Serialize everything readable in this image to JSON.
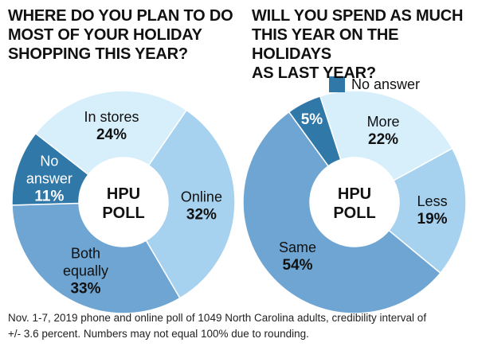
{
  "chart_data": [
    {
      "type": "pie",
      "variant": "donut",
      "title": "WHERE DO YOU PLAN TO DO\nMOST OF YOUR HOLIDAY\nSHOPPING THIS YEAR?",
      "center_label": "HPU\nPOLL",
      "slices": [
        {
          "label": "In stores",
          "value": 24,
          "display": "24%",
          "color": "#d7eefb"
        },
        {
          "label": "Online",
          "value": 32,
          "display": "32%",
          "color": "#a6d1ef"
        },
        {
          "label": "Both\nequally",
          "value": 33,
          "display": "33%",
          "color": "#6ea5d2"
        },
        {
          "label": "No\nanswer",
          "value": 11,
          "display": "11%",
          "color": "#2f78a8"
        }
      ]
    },
    {
      "type": "pie",
      "variant": "donut",
      "title": "WILL YOU SPEND AS MUCH\nTHIS YEAR ON THE HOLIDAYS\nAS LAST YEAR?",
      "center_label": "HPU\nPOLL",
      "legend": [
        "No answer"
      ],
      "slices": [
        {
          "label": "More",
          "value": 22,
          "display": "22%",
          "color": "#d7eefb"
        },
        {
          "label": "Less",
          "value": 19,
          "display": "19%",
          "color": "#a6d1ef"
        },
        {
          "label": "Same",
          "value": 54,
          "display": "54%",
          "color": "#6ea5d2"
        },
        {
          "label": "No answer",
          "value": 5,
          "display": "5%",
          "color": "#2f78a8"
        }
      ]
    }
  ],
  "footnote": "Nov. 1-7, 2019 phone and online poll of 1049 North Carolina adults, credibility interval of\n+/- 3.6 percent. Numbers may not equal 100% due to rounding."
}
